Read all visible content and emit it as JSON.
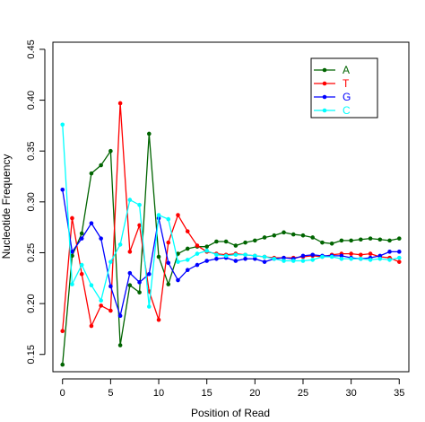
{
  "chart_data": {
    "type": "line",
    "xlabel": "Position of Read",
    "ylabel": "Nucleotide Frequency",
    "xlim": [
      -1,
      36
    ],
    "ylim": [
      0.133,
      0.457
    ],
    "xticks": [
      0,
      5,
      10,
      15,
      20,
      25,
      30,
      35
    ],
    "yticks": [
      0.15,
      0.2,
      0.25,
      0.3,
      0.35,
      0.4,
      0.45
    ],
    "ytick_labels": [
      "0.15",
      "0.20",
      "0.25",
      "0.30",
      "0.35",
      "0.40",
      "0.45"
    ],
    "grid": false,
    "legend_position": "top-right",
    "x": [
      0,
      1,
      2,
      3,
      4,
      5,
      6,
      7,
      8,
      9,
      10,
      11,
      12,
      13,
      14,
      15,
      16,
      17,
      18,
      19,
      20,
      21,
      22,
      23,
      24,
      25,
      26,
      27,
      28,
      29,
      30,
      31,
      32,
      33,
      34,
      35
    ],
    "series": [
      {
        "name": "A",
        "color": "#006400",
        "values": [
          0.14,
          0.247,
          0.269,
          0.328,
          0.336,
          0.35,
          0.159,
          0.218,
          0.211,
          0.367,
          0.246,
          0.219,
          0.249,
          0.254,
          0.256,
          0.256,
          0.261,
          0.261,
          0.257,
          0.26,
          0.262,
          0.265,
          0.267,
          0.27,
          0.268,
          0.267,
          0.265,
          0.26,
          0.259,
          0.262,
          0.262,
          0.263,
          0.264,
          0.263,
          0.262,
          0.264
        ]
      },
      {
        "name": "T",
        "color": "#ff0000",
        "values": [
          0.173,
          0.284,
          0.229,
          0.178,
          0.198,
          0.193,
          0.397,
          0.251,
          0.277,
          0.212,
          0.184,
          0.26,
          0.287,
          0.271,
          0.257,
          0.251,
          0.249,
          0.248,
          0.249,
          0.248,
          0.247,
          0.246,
          0.245,
          0.245,
          0.245,
          0.246,
          0.247,
          0.246,
          0.248,
          0.249,
          0.249,
          0.248,
          0.249,
          0.246,
          0.245,
          0.241
        ]
      },
      {
        "name": "G",
        "color": "#0000ff",
        "values": [
          0.312,
          0.251,
          0.264,
          0.279,
          0.264,
          0.217,
          0.188,
          0.23,
          0.221,
          0.229,
          0.284,
          0.24,
          0.223,
          0.233,
          0.238,
          0.242,
          0.244,
          0.245,
          0.242,
          0.244,
          0.244,
          0.241,
          0.244,
          0.245,
          0.244,
          0.247,
          0.248,
          0.247,
          0.247,
          0.247,
          0.245,
          0.244,
          0.245,
          0.247,
          0.251,
          0.251
        ]
      },
      {
        "name": "C",
        "color": "#00ffff",
        "values": [
          0.376,
          0.219,
          0.238,
          0.218,
          0.203,
          0.241,
          0.258,
          0.302,
          0.297,
          0.197,
          0.287,
          0.283,
          0.241,
          0.243,
          0.249,
          0.252,
          0.248,
          0.247,
          0.248,
          0.248,
          0.247,
          0.246,
          0.244,
          0.242,
          0.242,
          0.242,
          0.243,
          0.246,
          0.246,
          0.244,
          0.244,
          0.244,
          0.243,
          0.244,
          0.243,
          0.245
        ]
      }
    ]
  }
}
